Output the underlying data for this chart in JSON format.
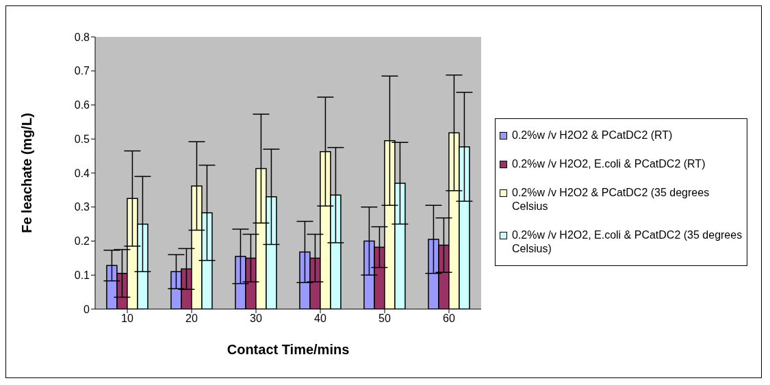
{
  "chart_data": {
    "type": "bar",
    "xlabel": "Contact Time/mins",
    "ylabel": "Fe leachate (mg/L)",
    "categories": [
      "10",
      "20",
      "30",
      "40",
      "50",
      "60"
    ],
    "ylim": [
      0,
      0.8
    ],
    "yticks": [
      0,
      0.1,
      0.2,
      0.3,
      0.4,
      0.5,
      0.6,
      0.7,
      0.8
    ],
    "legend": "right",
    "grid": false,
    "series": [
      {
        "name": "0.2%w /v H2O2 & PCatDC2 (RT)",
        "color": "#9999ff",
        "values": [
          0.128,
          0.11,
          0.155,
          0.168,
          0.2,
          0.205
        ],
        "errors": [
          0.045,
          0.05,
          0.08,
          0.09,
          0.1,
          0.1
        ]
      },
      {
        "name": "0.2%w /v H2O2, E.coli & PCatDC2 (RT)",
        "color": "#993366",
        "values": [
          0.105,
          0.118,
          0.15,
          0.15,
          0.182,
          0.188
        ],
        "errors": [
          0.07,
          0.06,
          0.07,
          0.07,
          0.06,
          0.08
        ]
      },
      {
        "name": "0.2%w /v H2O2 & PCatDC2 (35 degrees Celsius",
        "color": "#ffffcc",
        "values": [
          0.325,
          0.362,
          0.413,
          0.463,
          0.495,
          0.518
        ],
        "errors": [
          0.14,
          0.13,
          0.16,
          0.16,
          0.19,
          0.17
        ]
      },
      {
        "name": "0.2%w /v H2O2, E.coli & PCatDC2 (35 degrees Celsius)",
        "color": "#ccffff",
        "values": [
          0.25,
          0.283,
          0.33,
          0.335,
          0.37,
          0.477
        ],
        "errors": [
          0.14,
          0.14,
          0.14,
          0.14,
          0.12,
          0.16
        ]
      }
    ]
  }
}
